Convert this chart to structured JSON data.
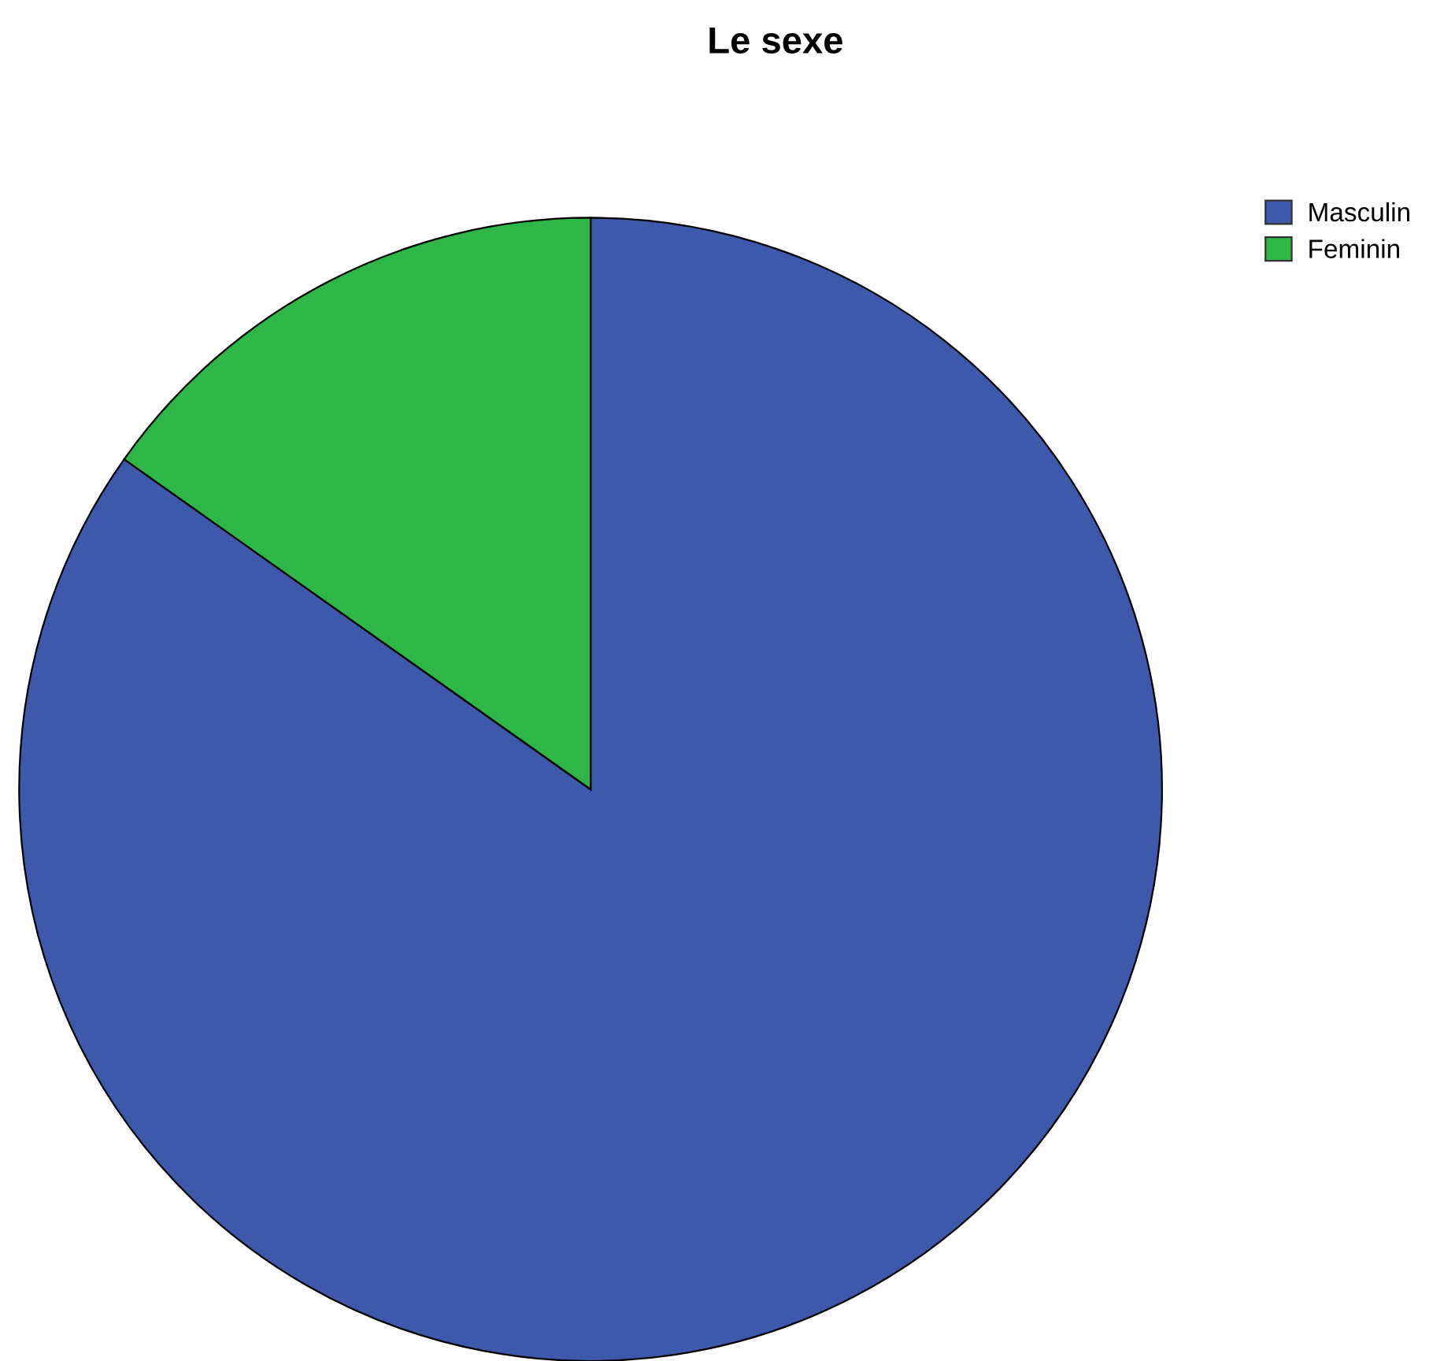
{
  "chart_data": {
    "type": "pie",
    "title": "Le sexe",
    "categories": [
      "Masculin",
      "Feminin"
    ],
    "values": [
      84.8,
      15.2
    ],
    "colors": [
      "#3e58ac",
      "#2eb747"
    ],
    "legend": "top right"
  }
}
